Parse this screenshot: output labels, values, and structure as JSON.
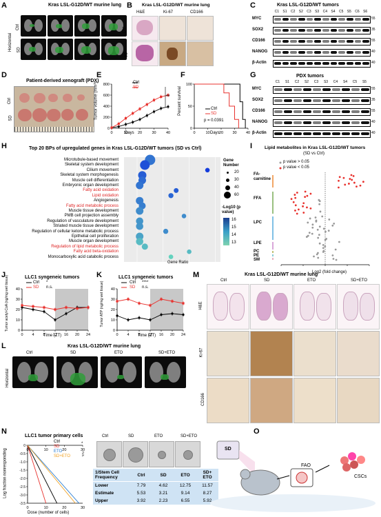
{
  "panel_letters": [
    "A",
    "B",
    "C",
    "D",
    "E",
    "F",
    "G",
    "H",
    "I",
    "J",
    "K",
    "L",
    "M",
    "N",
    "O"
  ],
  "panelA": {
    "title": "Kras LSL-G12D/WT murine lung",
    "weeks": [
      "2w",
      "3w",
      "5w",
      "7w"
    ],
    "rows": [
      "Ctrl",
      "SD"
    ],
    "orientation": "Horizontal"
  },
  "panelB": {
    "title": "Kras LSL-G12D/WT murine lung",
    "cols": [
      "H&E",
      "Ki-67",
      "CD166"
    ],
    "rows": [
      "Ctrl",
      "SD"
    ]
  },
  "panelC": {
    "title": "Kras LSL-G12D/WT tumors",
    "lanes": [
      "C1",
      "S1",
      "C2",
      "S2",
      "C3",
      "S3",
      "C4",
      "S4",
      "C5",
      "S5",
      "C6",
      "S6"
    ],
    "proteins": [
      "MYC",
      "SOX2",
      "CD166",
      "NANOG",
      "β-Actin"
    ],
    "markers": [
      "55",
      "35",
      "55",
      "40",
      "40"
    ]
  },
  "panelD": {
    "title": "Patient-derived xenograft (PDX)",
    "rows": [
      "Ctrl",
      "SD"
    ]
  },
  "panelE": {
    "ylabel": "Tumor volume (mm³)",
    "xlabel": "Days",
    "legend": [
      "Ctrl",
      "SD"
    ],
    "sig": "**",
    "yticks": [
      "0",
      "200",
      "400",
      "600",
      "800"
    ],
    "xticks": [
      "0",
      "10",
      "20",
      "30",
      "40"
    ]
  },
  "panelF": {
    "ylabel": "Percent survival",
    "xlabel": "Days",
    "legend": [
      "Ctrl",
      "SD"
    ],
    "pvalue": "p = 0.0391",
    "yticks": [
      "0",
      "50",
      "100"
    ],
    "xticks": [
      "0",
      "10",
      "20",
      "30",
      "40"
    ]
  },
  "panelG": {
    "title": "PDX tumors",
    "lanes": [
      "C1",
      "S1",
      "C2",
      "S2",
      "C3",
      "S3",
      "C4",
      "S4",
      "C5",
      "S5"
    ],
    "proteins": [
      "MYC",
      "SOX2",
      "CD166",
      "NANOG",
      "β-Actin"
    ],
    "markers": [
      "55",
      "35",
      "55",
      "40",
      "40"
    ]
  },
  "panelH": {
    "title": "Top 20 BPs of upregulated genes in Kras LSL-G12D/WT tumors (SD vs Ctrl)",
    "xlabel": "Gene Ratio",
    "size_legend_title": "Gene Number",
    "size_values": [
      "20",
      "30",
      "40",
      "60"
    ],
    "color_legend_title": "-Log10 (p value)",
    "color_values": [
      "16",
      "15",
      "14",
      "13"
    ],
    "xticks": [
      "0.1",
      "0.2",
      "0.3",
      "0.4"
    ]
  },
  "chart_data": [
    {
      "type": "scatter",
      "panel": "H",
      "title": "Top 20 BPs of upregulated genes in Kras LSL-G12D/WT tumors (SD vs Ctrl)",
      "xlabel": "Gene Ratio",
      "xlim": [
        0.05,
        0.42
      ],
      "categories": [
        "Microtubule-based movement",
        "Skeletal system development",
        "Cilium movement",
        "Skeletal system morphogenesis",
        "Muscle cell differentiation",
        "Embryonic organ development",
        "Fatty acid oxidation",
        "Lipid oxidation",
        "Angiogenesis",
        "Fatty acid metabolic process",
        "Muscle tissue development",
        "PMB cell projection assembly",
        "Regulation of vasculature development",
        "Striated muscle tissue development",
        "Regulation of cellular ketone metabolic process",
        "Epithelial cell proliferation",
        "Muscle organ development",
        "Regulation of lipid metabolic process",
        "Fatty acid beta-oxidation",
        "Monocarboxylic acid catabolic process"
      ],
      "highlighted": [
        "Fatty acid oxidation",
        "Lipid oxidation",
        "Fatty acid metabolic process",
        "Regulation of lipid metabolic process",
        "Fatty acid beta-oxidation"
      ],
      "x": [
        0.15,
        0.13,
        0.37,
        0.12,
        0.12,
        0.11,
        0.25,
        0.23,
        0.11,
        0.12,
        0.11,
        0.28,
        0.11,
        0.11,
        0.21,
        0.11,
        0.11,
        0.13,
        0.3,
        0.23
      ],
      "size": [
        60,
        55,
        18,
        45,
        40,
        40,
        20,
        22,
        40,
        35,
        40,
        18,
        38,
        38,
        22,
        40,
        38,
        30,
        18,
        18
      ],
      "neglog10p": [
        15.0,
        15.8,
        16.2,
        15.5,
        15.2,
        15.0,
        15.5,
        15.3,
        14.8,
        14.8,
        14.5,
        14.5,
        14.3,
        14.3,
        14.5,
        14.0,
        13.5,
        13.5,
        13.5,
        13.0
      ]
    },
    {
      "type": "line",
      "panel": "E",
      "xlabel": "Days",
      "ylabel": "Tumor volume (mm³)",
      "xlim": [
        0,
        40
      ],
      "ylim": [
        0,
        800
      ],
      "x": [
        0,
        5,
        10,
        15,
        20,
        25,
        30,
        35,
        40
      ],
      "series": [
        {
          "name": "Ctrl",
          "values": [
            10,
            30,
            70,
            110,
            160,
            230,
            300,
            360,
            390
          ]
        },
        {
          "name": "SD",
          "values": [
            10,
            80,
            180,
            270,
            350,
            430,
            510,
            570,
            600
          ]
        }
      ]
    },
    {
      "type": "line",
      "panel": "F",
      "xlabel": "Days",
      "ylabel": "Percent survival",
      "xlim": [
        0,
        40
      ],
      "ylim": [
        0,
        100
      ],
      "series": [
        {
          "name": "Ctrl",
          "x": [
            0,
            34,
            34,
            36,
            36,
            38,
            38
          ],
          "values": [
            100,
            100,
            60,
            60,
            20,
            20,
            0
          ]
        },
        {
          "name": "SD",
          "x": [
            0,
            22,
            22,
            26,
            26,
            30,
            30,
            33,
            33
          ],
          "values": [
            100,
            100,
            80,
            80,
            50,
            50,
            20,
            20,
            0
          ]
        }
      ]
    },
    {
      "type": "line",
      "panel": "J",
      "title": "LLC1 syngeneic tumors",
      "xlabel": "Time (ZT)",
      "ylabel": "Tumor acetyl-CoA (ng/mg wet tissue)",
      "xlim": [
        0,
        24
      ],
      "ylim": [
        0,
        40
      ],
      "x": [
        0,
        4,
        8,
        12,
        16,
        20,
        24
      ],
      "series": [
        {
          "name": "Ctrl",
          "values": [
            22,
            20,
            18,
            10,
            16,
            22,
            22
          ]
        },
        {
          "name": "SD",
          "values": [
            24,
            23,
            22,
            20,
            22,
            21,
            22
          ]
        }
      ]
    },
    {
      "type": "line",
      "panel": "K",
      "title": "LLC1 syngeneic tumors",
      "xlabel": "Time (ZT)",
      "ylabel": "Tumor ATP (ng/mg wet tissue)",
      "xlim": [
        0,
        24
      ],
      "ylim": [
        0,
        40
      ],
      "x": [
        0,
        4,
        8,
        12,
        16,
        20,
        24
      ],
      "series": [
        {
          "name": "Ctrl",
          "values": [
            14,
            10,
            12,
            10,
            15,
            16,
            15
          ]
        },
        {
          "name": "SD",
          "values": [
            28,
            30,
            26,
            24,
            30,
            28,
            26
          ]
        }
      ]
    },
    {
      "type": "scatter",
      "panel": "I",
      "title": "Lipid metabolites in Kras LSL-G12D/WT tumors (SD vs Ctrl)",
      "xlabel": "Log2 (fold change)",
      "xlim": [
        -2,
        2
      ],
      "categories": [
        "FA-carnitine",
        "FFA",
        "LPC",
        "LPE",
        "PC",
        "PE",
        "SM"
      ]
    },
    {
      "type": "line",
      "panel": "N",
      "title": "LLC1 tumor primary cells",
      "xlabel": "Dose (number of cells)",
      "ylabel": "Log fraction nonresponding",
      "xlim": [
        0,
        35
      ],
      "ylim": [
        -3.5,
        0
      ],
      "series": [
        {
          "name": "Ctrl"
        },
        {
          "name": "SD"
        },
        {
          "name": "ETO"
        },
        {
          "name": "SD+ETO"
        }
      ]
    }
  ],
  "panelI": {
    "title": "Lipid metabolites in Kras LSL-G12D/WT tumors",
    "subtitle": "(SD vs Ctrl)",
    "legend": [
      "p value > 0.05",
      "p value < 0.05"
    ],
    "groups": [
      "FA-carnitine",
      "FFA",
      "LPC",
      "LPE",
      "PC",
      "PE",
      "SM"
    ],
    "xlabel": "Log2 (fold change)",
    "xticks": [
      "-2",
      "-1",
      "0",
      "1",
      "2"
    ]
  },
  "panelJ": {
    "title": "LLC1 syngeneic tumors",
    "ylabel": "Tumor acetyl-CoA (ng/mg wet tissue)",
    "xlabel": "Time (ZT)",
    "legend": [
      "Ctrl",
      "SD"
    ],
    "sig": [
      "*",
      "n.s."
    ],
    "yticks": [
      "0",
      "10",
      "20",
      "30",
      "40"
    ],
    "xticks": [
      "0",
      "4",
      "8",
      "12",
      "16",
      "20",
      "24"
    ]
  },
  "panelK": {
    "title": "LLC1 syngeneic tumors",
    "ylabel": "Tumor ATP (ng/mg wet tissue)",
    "xlabel": "Time (ZT)",
    "legend": [
      "Ctrl",
      "SD"
    ],
    "sig": [
      "****",
      "n.s."
    ],
    "yticks": [
      "0",
      "10",
      "20",
      "30",
      "40"
    ],
    "xticks": [
      "0",
      "4",
      "8",
      "12",
      "16",
      "20",
      "24"
    ]
  },
  "panelL": {
    "title": "Kras LSL-G12D/WT murine lung",
    "cols": [
      "Ctrl",
      "SD",
      "ETO",
      "SD+ETO"
    ],
    "orientation": "Horizontal"
  },
  "panelM": {
    "title": "Kras LSL-G12D/WT murine lung",
    "cols": [
      "Ctrl",
      "SD",
      "ETO",
      "SD+ETO"
    ],
    "rows": [
      "H&E",
      "Ki-67",
      "CD166"
    ]
  },
  "panelN": {
    "title": "LLC1 tumor primary cells",
    "legend": [
      "Ctrl",
      "SD",
      "ETO",
      "SD+ETO"
    ],
    "sig": [
      "*",
      "n.s."
    ],
    "ylabel": "Log fraction nonresponding",
    "xlabel": "Dose (number of cells)",
    "yticks": [
      "0",
      "-0.5",
      "-1.0",
      "-1.5",
      "-2.0",
      "-2.5",
      "-3.0",
      "-3.5"
    ],
    "xticks": [
      "0",
      "10",
      "20",
      "30"
    ],
    "img_cols": [
      "Ctrl",
      "SD",
      "ETO",
      "SD+ETO"
    ],
    "table_header": [
      "1/Stem Cell Frequency",
      "Ctrl",
      "SD",
      "ETO",
      "SD+ ETO"
    ],
    "table_rows": [
      [
        "Lower",
        "7.79",
        "4.62",
        "12.75",
        "11.57"
      ],
      [
        "Estimate",
        "5.53",
        "3.21",
        "9.14",
        "8.27"
      ],
      [
        "Upper",
        "3.92",
        "2.23",
        "6.55",
        "5.92"
      ]
    ]
  },
  "panelO": {
    "labels": [
      "SD",
      "FAO",
      "CSCs"
    ]
  },
  "colors": {
    "ctrl": "#000000",
    "sd": "#e8312d",
    "eto": "#1f77d0",
    "sdeto": "#f0a020"
  }
}
